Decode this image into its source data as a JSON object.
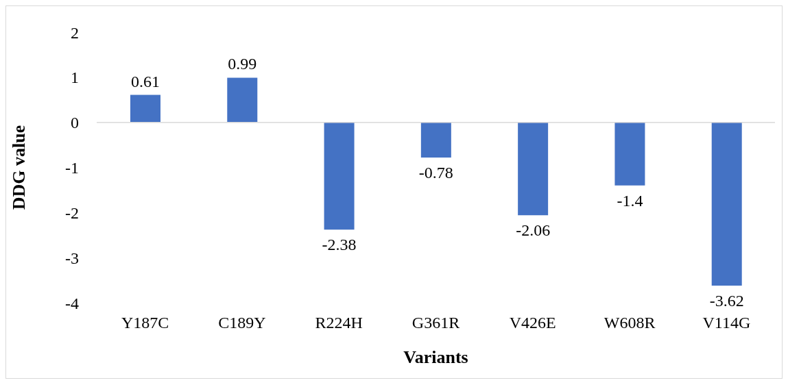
{
  "chart_data": {
    "type": "bar",
    "xlabel": "Variants",
    "ylabel": "DDG value",
    "categories": [
      "Y187C",
      "C189Y",
      "R224H",
      "G361R",
      "V426E",
      "W608R",
      "V114G"
    ],
    "values": [
      0.61,
      0.99,
      -2.38,
      -0.78,
      -2.06,
      -1.4,
      -3.62
    ],
    "color": "#4472c4",
    "ylim": [
      -4,
      2
    ],
    "yticks": [
      -4,
      -3,
      -2,
      -1,
      0,
      1,
      2
    ],
    "grid": false,
    "data_labels": true,
    "ref_lines": [
      {
        "axis": "y",
        "value": 0,
        "color": "#d9d9d9"
      }
    ]
  }
}
